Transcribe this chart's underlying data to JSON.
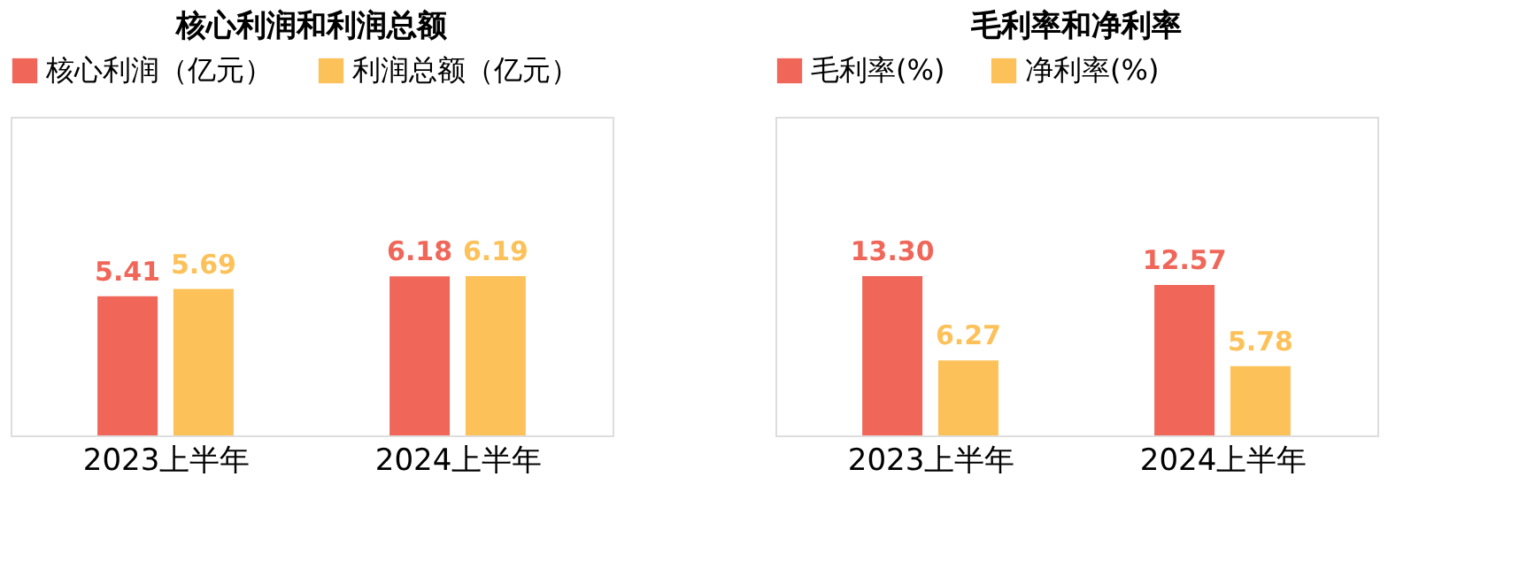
{
  "chart_data": [
    {
      "type": "bar",
      "title": "核心利润和利润总额",
      "categories": [
        "2023上半年",
        "2024上半年"
      ],
      "series": [
        {
          "name": "核心利润（亿元）",
          "color": "#f0675a",
          "values": [
            5.41,
            6.18
          ],
          "value_labels": [
            "5.41",
            "6.18"
          ]
        },
        {
          "name": "利润总额（亿元）",
          "color": "#fdc15a",
          "values": [
            5.69,
            6.19
          ],
          "value_labels": [
            "5.69",
            "6.19"
          ]
        }
      ],
      "legend": "top",
      "grid": false
    },
    {
      "type": "bar",
      "title": "毛利率和净利率",
      "categories": [
        "2023上半年",
        "2024上半年"
      ],
      "series": [
        {
          "name": "毛利率(%)",
          "color": "#f0675a",
          "values": [
            13.3,
            12.57
          ],
          "value_labels": [
            "13.30",
            "12.57"
          ]
        },
        {
          "name": "净利率(%)",
          "color": "#fdc15a",
          "values": [
            6.27,
            5.78
          ],
          "value_labels": [
            "6.27",
            "5.78"
          ]
        }
      ],
      "legend": "top",
      "grid": false
    }
  ]
}
